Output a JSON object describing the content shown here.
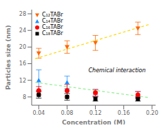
{
  "chart_data": {
    "type": "scatter",
    "xlabel": "Concentration (M)",
    "ylabel": "Particles size (nm)",
    "xlim": [
      0.03,
      0.205
    ],
    "ylim": [
      6,
      29
    ],
    "xticks": [
      0.04,
      0.08,
      0.12,
      0.16,
      {
        "value": 0.2,
        "label": "0.20"
      }
    ],
    "yticks": [
      8,
      12,
      16,
      20,
      24,
      28
    ],
    "legend": "upper left",
    "annotations": [
      "Chemical interaction"
    ],
    "series": [
      {
        "name": "C₁₂TABr",
        "x": [
          0.04,
          0.08,
          0.12,
          0.18
        ],
        "values": [
          18.5,
          20.0,
          21.0,
          24.5
        ],
        "errors": [
          1.2,
          1.5,
          1.8,
          1.5
        ],
        "color": "#FF6600",
        "marker": "triangle_down",
        "trend": {
          "type": "line",
          "x": [
            0.035,
            0.197
          ],
          "values": [
            17.2,
            25.5
          ],
          "color": "#FFD700",
          "line_style": "dashed"
        }
      },
      {
        "name": "C₁₄TABr",
        "x": [
          0.04,
          0.08,
          0.12,
          0.18
        ],
        "values": [
          12.0,
          11.5,
          9.0,
          8.5
        ],
        "errors": [
          2.5,
          1.5,
          0.8,
          0.8
        ],
        "color": "#1E90FF",
        "marker": "triangle_up",
        "trend": {
          "type": "line",
          "x": [
            0.035,
            0.197
          ],
          "values": [
            11.5,
            7.8
          ],
          "color": "#90EE90",
          "line_style": "dashed"
        }
      },
      {
        "name": "C₁₆TABr",
        "x": [
          0.04,
          0.08,
          0.12,
          0.18
        ],
        "values": [
          9.5,
          9.5,
          9.0,
          8.5
        ],
        "errors": [
          1.0,
          1.5,
          0.8,
          0.8
        ],
        "color": "#FF0000",
        "marker": "circle"
      },
      {
        "name": "C₁₈TABr",
        "x": [
          0.04,
          0.08,
          0.12,
          0.18
        ],
        "values": [
          8.5,
          8.0,
          7.5,
          7.5
        ],
        "errors": [
          0.8,
          0.8,
          0.5,
          0.5
        ],
        "color": "#000000",
        "marker": "square"
      }
    ]
  }
}
